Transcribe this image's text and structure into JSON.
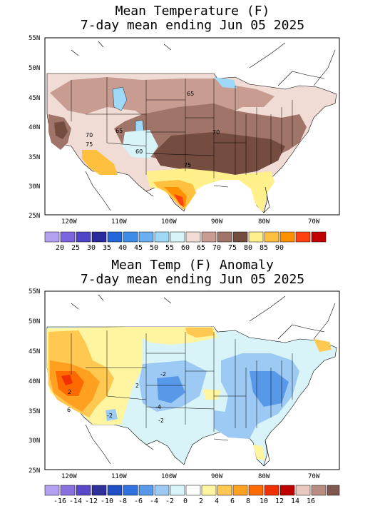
{
  "maps": [
    {
      "id": "temperature",
      "title_line1": "Mean Temperature (F)",
      "title_line2": "7-day mean ending Jun 05 2025",
      "lat_labels": [
        "55N",
        "50N",
        "45N",
        "40N",
        "35N",
        "30N",
        "25N"
      ],
      "lon_labels": [
        "120W",
        "110W",
        "100W",
        "90W",
        "80W",
        "70W"
      ],
      "contour_labels": [
        "65",
        "70",
        "65",
        "75",
        "60",
        "70",
        "75"
      ],
      "colorbar": {
        "labels": [
          "20",
          "25",
          "30",
          "35",
          "40",
          "45",
          "50",
          "55",
          "60",
          "65",
          "70",
          "75",
          "80",
          "85",
          "90"
        ],
        "colors": [
          "#b4a0f0",
          "#7b66e0",
          "#5044c8",
          "#2a2a9c",
          "#2266d8",
          "#3c8ce8",
          "#6ab0f0",
          "#a0d8f8",
          "#d8f4f8",
          "#f0dcd4",
          "#c89c90",
          "#a07468",
          "#744c40",
          "#fff08c",
          "#ffc040",
          "#ff9000",
          "#ff4010",
          "#c00000"
        ]
      }
    },
    {
      "id": "anomaly",
      "title_line1": "Mean Temp (F) Anomaly",
      "title_line2": "7-day mean ending Jun 05 2025",
      "lat_labels": [
        "55N",
        "50N",
        "45N",
        "40N",
        "35N",
        "30N",
        "25N"
      ],
      "lon_labels": [
        "120W",
        "110W",
        "100W",
        "90W",
        "80W",
        "70W"
      ],
      "contour_labels": [
        "6",
        "2",
        "-2",
        "-4",
        "-2",
        "2",
        "-2"
      ],
      "colorbar": {
        "labels": [
          "-16",
          "-14",
          "-12",
          "-10",
          "-8",
          "-6",
          "-4",
          "-2",
          "0",
          "2",
          "4",
          "6",
          "8",
          "10",
          "12",
          "14",
          "16"
        ],
        "colors": [
          "#b4a0f0",
          "#8870e0",
          "#5848c8",
          "#30309c",
          "#2050c8",
          "#3070e0",
          "#5898e8",
          "#9ccaf4",
          "#d8f4f8",
          "#ffffff",
          "#fff4a0",
          "#ffc850",
          "#ffa020",
          "#ff6a00",
          "#f03000",
          "#c00000",
          "#e8c8c0",
          "#b88c80",
          "#805850"
        ]
      }
    }
  ]
}
